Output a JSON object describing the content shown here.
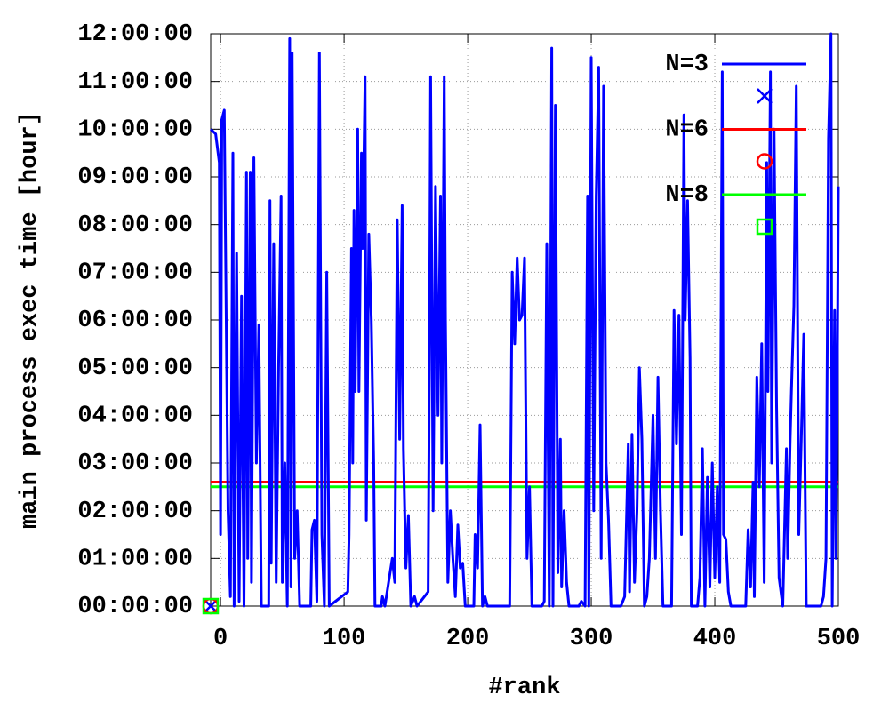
{
  "chart_data": {
    "type": "line",
    "xlabel": "#rank",
    "ylabel": "main process exec time [hour]",
    "xlim": [
      -8,
      500
    ],
    "ylim": [
      0,
      12
    ],
    "xticks": [
      0,
      100,
      200,
      300,
      400,
      500
    ],
    "yticks": [
      {
        "value": 0,
        "label": "00:00:00"
      },
      {
        "value": 1,
        "label": "01:00:00"
      },
      {
        "value": 2,
        "label": "02:00:00"
      },
      {
        "value": 3,
        "label": "03:00:00"
      },
      {
        "value": 4,
        "label": "04:00:00"
      },
      {
        "value": 5,
        "label": "05:00:00"
      },
      {
        "value": 6,
        "label": "06:00:00"
      },
      {
        "value": 7,
        "label": "07:00:00"
      },
      {
        "value": 8,
        "label": "08:00:00"
      },
      {
        "value": 9,
        "label": "09:00:00"
      },
      {
        "value": 10,
        "label": "10:00:00"
      },
      {
        "value": 11,
        "label": "11:00:00"
      },
      {
        "value": 12,
        "label": "12:00:00"
      }
    ],
    "grid": true,
    "legend": "top right",
    "series": [
      {
        "name": "N=3",
        "color": "#0000ff",
        "x": [
          -8,
          -4,
          -1,
          0,
          1,
          3,
          6,
          8,
          10,
          11,
          13,
          15,
          17,
          19,
          21,
          22,
          24,
          25,
          27,
          29,
          31,
          33,
          39,
          40,
          41,
          43,
          45,
          47,
          49,
          50,
          52,
          54,
          56,
          57,
          58,
          60,
          62,
          64,
          73,
          74,
          76,
          78,
          80,
          82,
          84,
          86,
          88,
          103,
          104,
          106,
          107,
          108,
          109,
          111,
          112,
          114,
          115,
          117,
          118,
          120,
          122,
          124,
          125,
          130,
          131,
          133,
          139,
          141,
          143,
          145,
          147,
          148,
          150,
          152,
          154,
          157,
          159,
          168,
          169,
          170,
          172,
          174,
          176,
          178,
          179,
          181,
          182,
          184,
          186,
          188,
          190,
          192,
          194,
          196,
          198,
          205,
          206,
          208,
          210,
          212,
          214,
          216,
          234,
          236,
          238,
          240,
          242,
          244,
          246,
          248,
          250,
          252,
          260,
          262,
          264,
          266,
          268,
          269,
          271,
          273,
          275,
          276,
          278,
          280,
          282,
          290,
          292,
          295,
          297,
          298,
          300,
          302,
          304,
          306,
          308,
          310,
          312,
          314,
          316,
          324,
          327,
          330,
          331,
          333,
          335,
          337,
          339,
          341,
          343,
          345,
          347,
          350,
          352,
          354,
          356,
          358,
          365,
          367,
          369,
          371,
          373,
          375,
          376,
          378,
          380,
          381,
          386,
          388,
          390,
          392,
          394,
          396,
          398,
          400,
          402,
          404,
          406,
          407,
          409,
          411,
          413,
          425,
          427,
          429,
          431,
          432,
          434,
          436,
          438,
          440,
          442,
          443,
          445,
          446,
          448,
          450,
          452,
          455,
          458,
          459,
          461,
          462,
          464,
          466,
          468,
          470,
          472,
          474,
          486,
          488,
          490,
          492,
          494,
          495,
          497,
          498,
          499,
          500
        ],
        "values": [
          10,
          9.9,
          9.3,
          1.5,
          10.2,
          10.4,
          2,
          0.2,
          9.5,
          0,
          7.4,
          0.1,
          6.5,
          0,
          9.1,
          1,
          9.1,
          0.5,
          9.4,
          3,
          5.9,
          0,
          0,
          8.5,
          0.9,
          7.6,
          0.5,
          5,
          8.6,
          0.5,
          3,
          0,
          11.9,
          0.4,
          11.6,
          1,
          2,
          0,
          0,
          1.6,
          1.8,
          0.1,
          11.6,
          1.5,
          0,
          7,
          0,
          0.3,
          1.5,
          7.5,
          3,
          8.3,
          4.5,
          10,
          4.5,
          9.5,
          7.5,
          11.1,
          1.8,
          7.8,
          6,
          3,
          0,
          0,
          0.2,
          0,
          1,
          0.5,
          8.1,
          3.5,
          8.4,
          3.3,
          0.8,
          1.9,
          0,
          0.2,
          0,
          0.3,
          5,
          11.1,
          2,
          8.8,
          4,
          8.6,
          3,
          11.1,
          6,
          0.5,
          2,
          1,
          0.2,
          1.7,
          0.8,
          0.9,
          0,
          0,
          1.5,
          0.8,
          3.8,
          0,
          0.2,
          0,
          0,
          7,
          5.5,
          7.3,
          6,
          6.1,
          7.3,
          1,
          2.5,
          0,
          0,
          0.1,
          7.6,
          0,
          11.7,
          0,
          10.5,
          0.7,
          3.5,
          0.4,
          2,
          0.5,
          0,
          0,
          0.1,
          0,
          8.6,
          0,
          11.5,
          2,
          8.6,
          11.3,
          1,
          10.9,
          3,
          1.8,
          0,
          0,
          0.2,
          3.4,
          0.3,
          3.6,
          0.5,
          2,
          5,
          3.5,
          0,
          0.2,
          1,
          4,
          1,
          4.8,
          2,
          0,
          0,
          6.2,
          3.4,
          6.1,
          1.5,
          10.3,
          6,
          8.5,
          5.2,
          0,
          0,
          0.6,
          3.3,
          0,
          2.7,
          0.4,
          3,
          0.6,
          2.5,
          0.5,
          11.2,
          1.5,
          1.4,
          0.3,
          0,
          0,
          1.6,
          0.4,
          2.6,
          0.2,
          4.8,
          2.5,
          5.5,
          0.5,
          9.3,
          4.5,
          11.2,
          3,
          10,
          4.2,
          0.6,
          0,
          3.3,
          1,
          3.5,
          4.5,
          6.3,
          10.9,
          1.5,
          3.5,
          5.7,
          0,
          0,
          0.2,
          1,
          9.8,
          12,
          0,
          6.2,
          1,
          4.1,
          8.8
        ]
      },
      {
        "name": "N=6",
        "color": "#ff0000",
        "x": [
          -8,
          500
        ],
        "values": [
          2.6,
          2.6
        ]
      },
      {
        "name": "N=8",
        "color": "#00ff00",
        "x": [
          -8,
          500
        ],
        "values": [
          2.5,
          2.5
        ]
      }
    ],
    "points": [
      {
        "marker": "x",
        "color": "#0000ff",
        "x": [
          -8
        ],
        "values": [
          0
        ]
      },
      {
        "marker": "circle",
        "color": "#ff0000",
        "x": [
          -8
        ],
        "values": [
          0
        ]
      },
      {
        "marker": "square",
        "color": "#00ff00",
        "x": [
          -8
        ],
        "values": [
          0
        ]
      }
    ]
  }
}
